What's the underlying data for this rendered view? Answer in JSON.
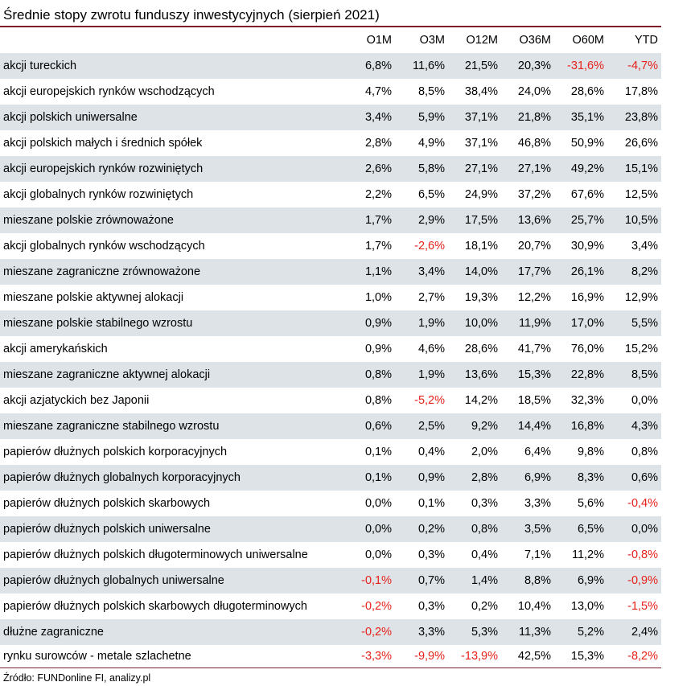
{
  "chart_data": {
    "type": "table",
    "title": "Średnie stopy zwrotu funduszy inwestycyjnych (sierpień 2021)",
    "columns": [
      "",
      "O1M",
      "O3M",
      "O12M",
      "O36M",
      "O60M",
      "YTD"
    ],
    "rows": [
      {
        "name": "akcji tureckich",
        "values": [
          "6,8%",
          "11,6%",
          "21,5%",
          "20,3%",
          "-31,6%",
          "-4,7%"
        ]
      },
      {
        "name": "akcji europejskich rynków wschodzących",
        "values": [
          "4,7%",
          "8,5%",
          "38,4%",
          "24,0%",
          "28,6%",
          "17,8%"
        ]
      },
      {
        "name": "akcji polskich uniwersalne",
        "values": [
          "3,4%",
          "5,9%",
          "37,1%",
          "21,8%",
          "35,1%",
          "23,8%"
        ]
      },
      {
        "name": "akcji polskich małych i średnich spółek",
        "values": [
          "2,8%",
          "4,9%",
          "37,1%",
          "46,8%",
          "50,9%",
          "26,6%"
        ]
      },
      {
        "name": "akcji europejskich rynków rozwiniętych",
        "values": [
          "2,6%",
          "5,8%",
          "27,1%",
          "27,1%",
          "49,2%",
          "15,1%"
        ]
      },
      {
        "name": "akcji globalnych rynków rozwiniętych",
        "values": [
          "2,2%",
          "6,5%",
          "24,9%",
          "37,2%",
          "67,6%",
          "12,5%"
        ]
      },
      {
        "name": "mieszane polskie zrównoważone",
        "values": [
          "1,7%",
          "2,9%",
          "17,5%",
          "13,6%",
          "25,7%",
          "10,5%"
        ]
      },
      {
        "name": "akcji globalnych rynków wschodzących",
        "values": [
          "1,7%",
          "-2,6%",
          "18,1%",
          "20,7%",
          "30,9%",
          "3,4%"
        ]
      },
      {
        "name": "mieszane zagraniczne zrównoważone",
        "values": [
          "1,1%",
          "3,4%",
          "14,0%",
          "17,7%",
          "26,1%",
          "8,2%"
        ]
      },
      {
        "name": "mieszane polskie aktywnej alokacji",
        "values": [
          "1,0%",
          "2,7%",
          "19,3%",
          "12,2%",
          "16,9%",
          "12,9%"
        ]
      },
      {
        "name": "mieszane polskie stabilnego wzrostu",
        "values": [
          "0,9%",
          "1,9%",
          "10,0%",
          "11,9%",
          "17,0%",
          "5,5%"
        ]
      },
      {
        "name": "akcji amerykańskich",
        "values": [
          "0,9%",
          "4,6%",
          "28,6%",
          "41,7%",
          "76,0%",
          "15,2%"
        ]
      },
      {
        "name": "mieszane zagraniczne aktywnej alokacji",
        "values": [
          "0,8%",
          "1,9%",
          "13,6%",
          "15,3%",
          "22,8%",
          "8,5%"
        ]
      },
      {
        "name": "akcji azjatyckich bez Japonii",
        "values": [
          "0,8%",
          "-5,2%",
          "14,2%",
          "18,5%",
          "32,3%",
          "0,0%"
        ]
      },
      {
        "name": "mieszane zagraniczne stabilnego wzrostu",
        "values": [
          "0,6%",
          "2,5%",
          "9,2%",
          "14,4%",
          "16,8%",
          "4,3%"
        ]
      },
      {
        "name": "papierów dłużnych polskich korporacyjnych",
        "values": [
          "0,1%",
          "0,4%",
          "2,0%",
          "6,4%",
          "9,8%",
          "0,8%"
        ]
      },
      {
        "name": "papierów dłużnych globalnych korporacyjnych",
        "values": [
          "0,1%",
          "0,9%",
          "2,8%",
          "6,9%",
          "8,3%",
          "0,6%"
        ]
      },
      {
        "name": "papierów dłużnych polskich skarbowych",
        "values": [
          "0,0%",
          "0,1%",
          "0,3%",
          "3,3%",
          "5,6%",
          "-0,4%"
        ]
      },
      {
        "name": "papierów dłużnych polskich uniwersalne",
        "values": [
          "0,0%",
          "0,2%",
          "0,8%",
          "3,5%",
          "6,5%",
          "0,0%"
        ]
      },
      {
        "name": "papierów dłużnych polskich długoterminowych uniwersalne",
        "values": [
          "0,0%",
          "0,3%",
          "0,4%",
          "7,1%",
          "11,2%",
          "-0,8%"
        ]
      },
      {
        "name": "papierów dłużnych globalnych uniwersalne",
        "values": [
          "-0,1%",
          "0,7%",
          "1,4%",
          "8,8%",
          "6,9%",
          "-0,9%"
        ]
      },
      {
        "name": "papierów dłużnych polskich skarbowych długoterminowych",
        "values": [
          "-0,2%",
          "0,3%",
          "0,2%",
          "10,4%",
          "13,0%",
          "-1,5%"
        ]
      },
      {
        "name": "dłużne zagraniczne",
        "values": [
          "-0,2%",
          "3,3%",
          "5,3%",
          "11,3%",
          "5,2%",
          "2,4%"
        ]
      },
      {
        "name": "rynku surowców - metale szlachetne",
        "values": [
          "-3,3%",
          "-9,9%",
          "-13,9%",
          "42,5%",
          "15,3%",
          "-8,2%"
        ]
      }
    ],
    "negative_color": "#e8211a",
    "shaded_row_color": "#dde3e7",
    "rule_color": "#7f1d2a"
  },
  "source": "Źródło: FUNDonline FI, analizy.pl"
}
